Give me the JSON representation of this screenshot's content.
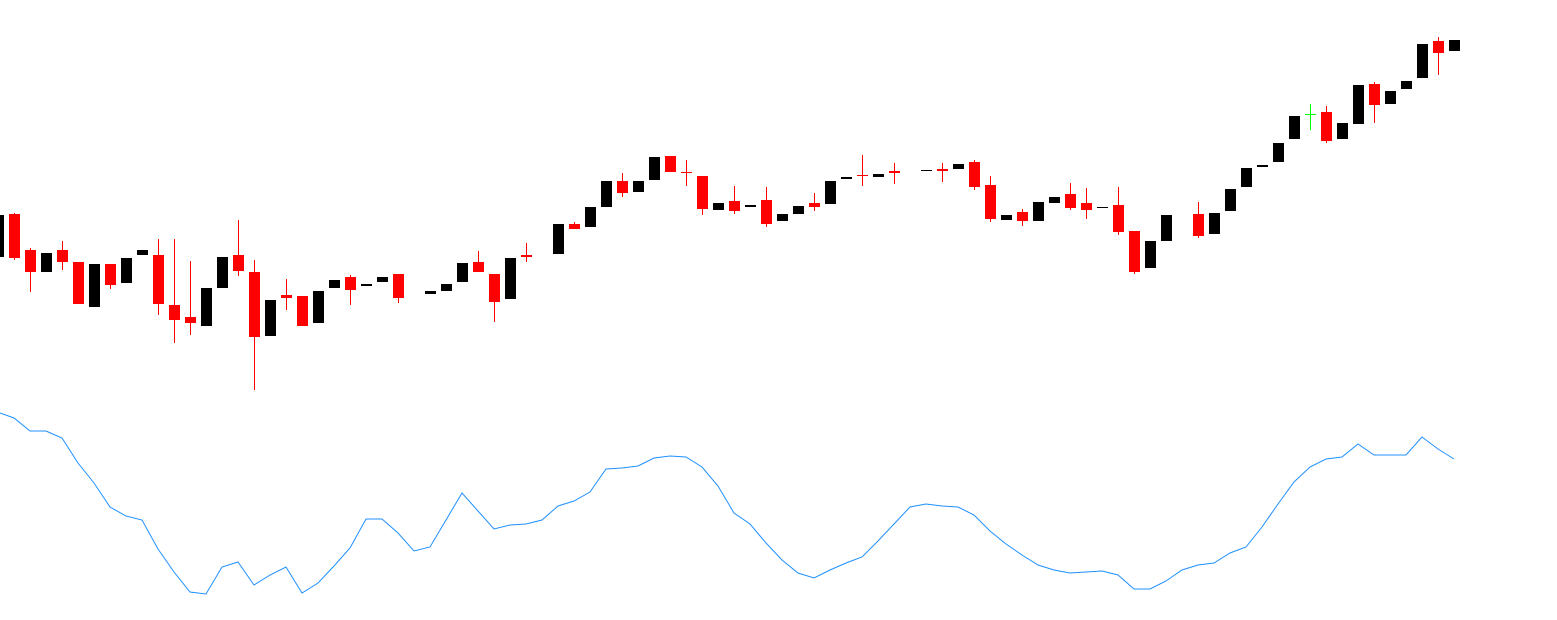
{
  "chart_data": {
    "type": "candlestick",
    "up_color": "#000000",
    "down_color": "#ff0000",
    "doji_color": "#00ff00",
    "open": [
      363,
      406,
      370,
      348,
      370,
      358,
      313,
      356,
      337,
      365,
      365,
      315,
      303,
      294,
      332,
      365,
      348,
      284,
      325,
      324,
      297,
      332,
      343,
      334,
      338,
      346,
      null,
      326,
      329,
      338,
      358,
      346,
      321,
      365,
      null,
      366,
      396,
      393,
      413,
      439,
      428,
      440,
      464,
      448,
      444,
      410,
      419,
      413,
      420,
      399,
      406,
      417,
      416,
      441,
      445,
      443,
      449,
      null,
      449,
      451,
      451,
      458,
      435,
      400,
      408,
      399,
      417,
      426,
      417,
      412,
      415,
      389,
      352,
      379,
      null,
      406,
      386,
      409,
      433,
      453,
      458,
      481,
      506,
      508,
      481,
      496,
      536,
      516,
      531,
      542,
      579,
      569
    ],
    "high": [
      407,
      407,
      372,
      367,
      379,
      358,
      356,
      356,
      362,
      370,
      381,
      381,
      359,
      332,
      363,
      400,
      360,
      320,
      341,
      324,
      329,
      340,
      345,
      336,
      343,
      346,
      null,
      329,
      336,
      357,
      369,
      346,
      362,
      377,
      null,
      396,
      398,
      413,
      439,
      447,
      439,
      463,
      464,
      460,
      444,
      417,
      434,
      415,
      433,
      406,
      414,
      427,
      439,
      443,
      465,
      446,
      457,
      null,
      450,
      457,
      456,
      460,
      444,
      405,
      411,
      418,
      423,
      437,
      432,
      413,
      433,
      389,
      379,
      405,
      null,
      418,
      407,
      431,
      452,
      455,
      477,
      504,
      516,
      514,
      497,
      535,
      538,
      529,
      539,
      576,
      583,
      580
    ],
    "low": [
      361,
      360,
      328,
      348,
      350,
      316,
      313,
      331,
      337,
      365,
      305,
      277,
      285,
      294,
      332,
      344,
      230,
      284,
      310,
      294,
      297,
      332,
      315,
      334,
      338,
      317,
      null,
      326,
      329,
      338,
      348,
      298,
      321,
      358,
      null,
      366,
      391,
      393,
      413,
      423,
      428,
      440,
      448,
      434,
      405,
      410,
      406,
      413,
      393,
      399,
      406,
      409,
      416,
      441,
      434,
      443,
      436,
      null,
      449,
      438,
      451,
      430,
      398,
      400,
      394,
      399,
      417,
      410,
      401,
      412,
      385,
      346,
      352,
      379,
      null,
      382,
      386,
      409,
      433,
      453,
      458,
      481,
      490,
      477,
      481,
      496,
      497,
      516,
      531,
      542,
      545,
      569
    ],
    "close": [
      405,
      362,
      348,
      367,
      358,
      316,
      356,
      335,
      362,
      370,
      316,
      300,
      297,
      332,
      363,
      349,
      283,
      320,
      322,
      294,
      329,
      340,
      330,
      336,
      343,
      322,
      null,
      329,
      336,
      357,
      348,
      318,
      362,
      363,
      null,
      396,
      391,
      413,
      439,
      427,
      439,
      463,
      448,
      447,
      411,
      417,
      409,
      415,
      396,
      406,
      414,
      413,
      439,
      443,
      444,
      446,
      447,
      null,
      450,
      449,
      456,
      433,
      401,
      405,
      399,
      418,
      423,
      412,
      410,
      413,
      388,
      348,
      379,
      405,
      null,
      384,
      407,
      431,
      452,
      455,
      477,
      504,
      506,
      479,
      497,
      535,
      515,
      529,
      539,
      576,
      567,
      580
    ],
    "indicator": {
      "color": "#1e90ff",
      "values": [
        207,
        202,
        189,
        189,
        182,
        157,
        137,
        113,
        104,
        100,
        71,
        48,
        28,
        26,
        53,
        58,
        35,
        45,
        53,
        27,
        37,
        54,
        72,
        101,
        101,
        87,
        69,
        73,
        100,
        127,
        109,
        91,
        95,
        96,
        100,
        114,
        119,
        128,
        151,
        152,
        154,
        162,
        164,
        163,
        153,
        134,
        107,
        96,
        77,
        60,
        47,
        42,
        50,
        57,
        63,
        79,
        96,
        113,
        116,
        114,
        113,
        105,
        89,
        76,
        65,
        55,
        50,
        47,
        48,
        49,
        45,
        31,
        31,
        39,
        50,
        55,
        57,
        67,
        73,
        93,
        116,
        138,
        153,
        161,
        163,
        176,
        165,
        165,
        165,
        183,
        171,
        161
      ]
    }
  }
}
